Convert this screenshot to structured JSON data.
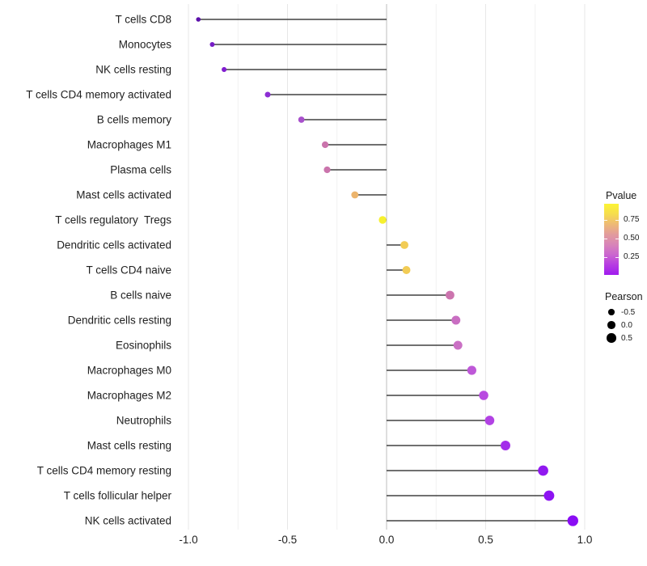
{
  "chart_data": {
    "type": "lollipop",
    "orientation": "horizontal",
    "title": "",
    "xlabel": "",
    "ylabel": "",
    "xlim": [
      -1.05,
      1.05
    ],
    "baseline": 0,
    "grid": "vertical gridlines every 0.25, no horizontal gridlines",
    "x_ticks": [
      {
        "value": -1.0,
        "label": "-1.0"
      },
      {
        "value": -0.5,
        "label": "-0.5"
      },
      {
        "value": 0.0,
        "label": "0.0"
      },
      {
        "value": 0.5,
        "label": "0.5"
      },
      {
        "value": 1.0,
        "label": "1.0"
      }
    ],
    "minor_grid_values": [
      -0.75,
      -0.25,
      0.25,
      0.75
    ],
    "categories": [
      "T cells CD8",
      "Monocytes",
      "NK cells resting",
      "T cells CD4 memory activated",
      "B cells memory",
      "Macrophages M1",
      "Plasma cells",
      "Mast cells activated",
      "T cells regulatory  Tregs",
      "Dendritic cells activated",
      "T cells CD4 naive",
      "B cells naive",
      "Dendritic cells resting",
      "Eosinophils",
      "Macrophages M0",
      "Macrophages M2",
      "Neutrophils",
      "Mast cells resting",
      "T cells CD4 memory resting",
      "T cells follicular helper",
      "NK cells activated"
    ],
    "series": [
      {
        "name": "Pearson",
        "values": [
          -0.95,
          -0.88,
          -0.82,
          -0.6,
          -0.43,
          -0.31,
          -0.3,
          -0.16,
          -0.02,
          0.09,
          0.1,
          0.32,
          0.35,
          0.36,
          0.43,
          0.49,
          0.52,
          0.6,
          0.79,
          0.82,
          0.94
        ]
      }
    ],
    "point_colors": [
      "#5c10aa",
      "#761cc6",
      "#811dd0",
      "#8c2ed4",
      "#a850cc",
      "#ca74ac",
      "#ca74ac",
      "#ecb46c",
      "#f6f02e",
      "#f2cc55",
      "#f2cc55",
      "#cc74ae",
      "#c96ec2",
      "#ca70c4",
      "#be58d8",
      "#b84ae0",
      "#b242e4",
      "#a32eea",
      "#9119f0",
      "#8d13f2",
      "#8a0df4"
    ],
    "color_encoding": "Pvalue (yellow = high p, purple = low p)",
    "size_encoding": "Pearson (larger dot = larger Pearson value)"
  },
  "legend": {
    "pvalue": {
      "title": "Pvalue",
      "ticks": [
        "0.75",
        "0.50",
        "0.25"
      ],
      "gradient_top_to_bottom": [
        "#fcf434",
        "#f6dd4d",
        "#eeba75",
        "#e29c9c",
        "#d885b8",
        "#cb66cf",
        "#b63ce2",
        "#a01bee"
      ]
    },
    "pearson": {
      "title": "Pearson",
      "items": [
        {
          "label": "-0.5",
          "value": -0.5
        },
        {
          "label": "0.0",
          "value": 0.0
        },
        {
          "label": "0.5",
          "value": 0.5
        }
      ]
    }
  },
  "colors": {
    "background": "#ffffff",
    "stem": "#404040",
    "zero_line": "#bdbdbd",
    "grid_major": "#e7e7e7",
    "grid_minor": "#f1f1f1",
    "axis_text": "#212121",
    "legend_dot": "#000000"
  }
}
